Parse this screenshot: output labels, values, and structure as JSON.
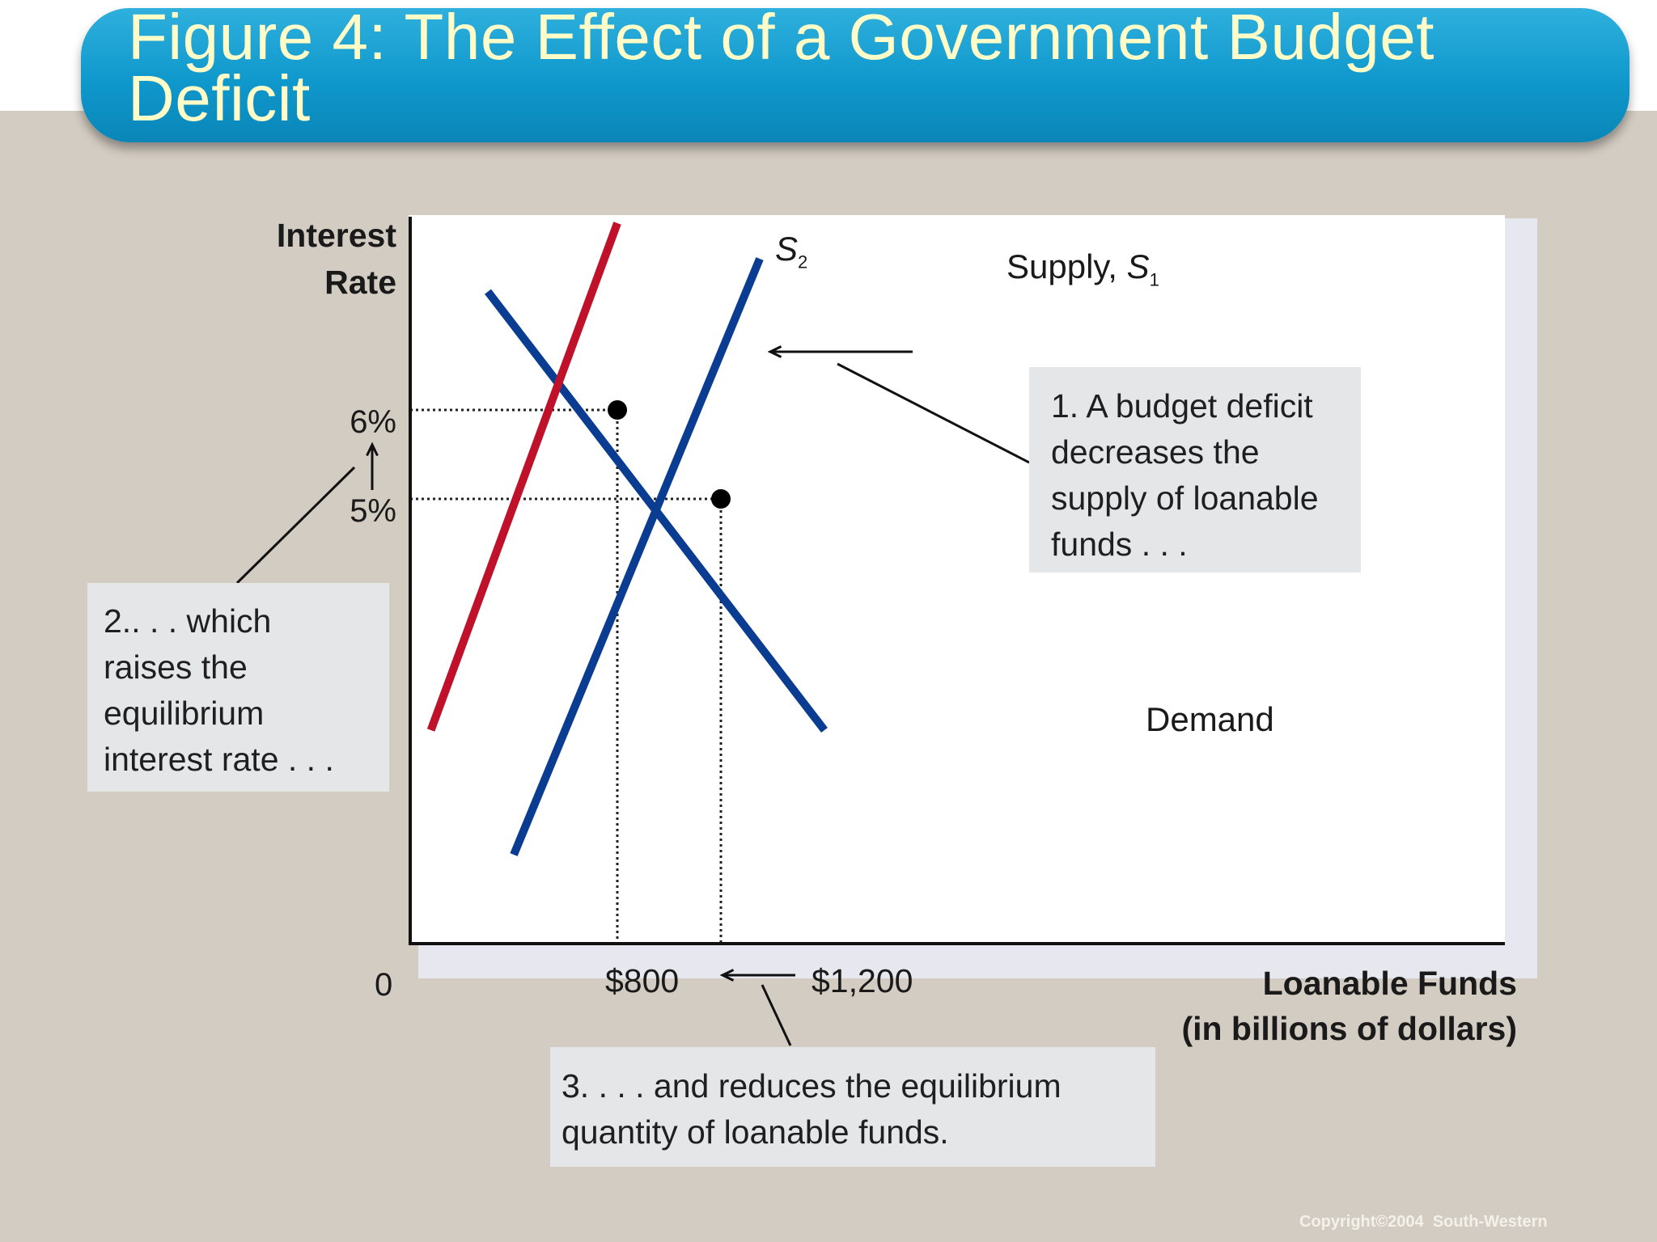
{
  "title": "Figure 4: The Effect of a Government Budget\nDeficit",
  "copyright": "Copyright©2004  South-Western",
  "chart_data": {
    "type": "line",
    "ylabel_line1": "Interest",
    "ylabel_line2": "Rate",
    "xlabel_line1": "Loanable Funds",
    "xlabel_line2": "(in billions of dollars)",
    "origin_label": "0",
    "series": [
      {
        "name": "Demand",
        "label": "Demand",
        "color": "#0a3d91",
        "points": [
          [
            300,
            7.33
          ],
          [
            1600,
            2.4
          ]
        ]
      },
      {
        "name": "Supply, S1",
        "label_main": "Supply, ",
        "label_var": "S",
        "label_sub": "1",
        "color": "#0a3d91",
        "points": [
          [
            400,
            1.0
          ],
          [
            1350,
            7.7
          ]
        ]
      },
      {
        "name": "S2",
        "label_var": "S",
        "label_sub": "2",
        "color": "#c0112a",
        "points": [
          [
            80,
            2.4
          ],
          [
            800,
            8.1
          ]
        ]
      }
    ],
    "equilibria": [
      {
        "x": 800,
        "y": 6,
        "x_label": "$800",
        "y_label": "6%"
      },
      {
        "x": 1200,
        "y": 5,
        "x_label": "$1,200",
        "y_label": "5%"
      }
    ],
    "annotations": [
      {
        "id": "deficit",
        "lines": [
          "1. A budget deficit",
          "decreases the",
          "supply of loanable",
          "funds . . ."
        ]
      },
      {
        "id": "raises",
        "lines": [
          "2.. . . which",
          "raises the",
          "equilibrium",
          "interest rate . . ."
        ]
      },
      {
        "id": "reduces",
        "lines": [
          "3. . . . and reduces the equilibrium",
          "quantity of loanable funds."
        ]
      }
    ]
  }
}
